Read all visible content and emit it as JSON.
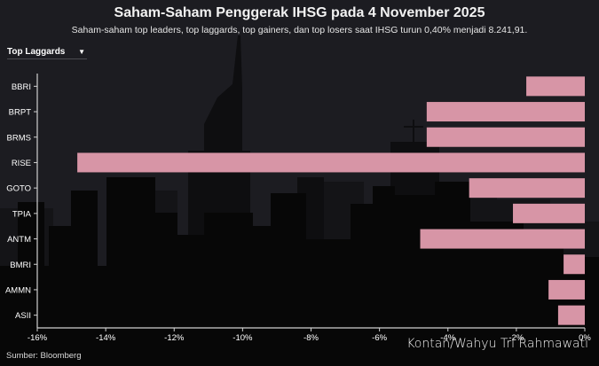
{
  "header": {
    "title": "Saham-Saham Penggerak IHSG pada 4 November 2025",
    "subtitle": "Saham-saham top leaders, top laggards, top gainers, dan top losers saat IHSG turun 0,40% menjadi 8.241,91."
  },
  "filter": {
    "selected": "Top Laggards",
    "icon": "caret-down-icon"
  },
  "footer": {
    "source": "Sumber: Bloomberg",
    "credit": "Kontan/Wahyu Tri Rahmawati"
  },
  "colors": {
    "bar": "#d795a6",
    "background": "#1c1c21",
    "axis": "#d0d0d0",
    "text": "#ffffff"
  },
  "chart_data": {
    "type": "bar",
    "orientation": "horizontal",
    "title": "Saham-Saham Penggerak IHSG pada 4 November 2025",
    "subtitle": "Saham-saham top leaders, top laggards, top gainers, dan top losers saat IHSG turun 0,40% menjadi 8.241,91.",
    "categories": [
      "BBRI",
      "BRPT",
      "BRMS",
      "RISE",
      "GOTO",
      "TPIA",
      "ANTM",
      "BMRI",
      "AMMN",
      "ASII"
    ],
    "values": [
      -1.71,
      -4.62,
      -4.62,
      -14.83,
      -3.38,
      -2.1,
      -4.81,
      -0.62,
      -1.06,
      -0.78
    ],
    "unit": "%",
    "xlabel": "",
    "ylabel": "",
    "xlim": [
      -16,
      0
    ],
    "xticks": [
      -16,
      -14,
      -12,
      -10,
      -8,
      -6,
      -4,
      -2,
      0
    ],
    "xtick_labels": [
      "-16%",
      "-14%",
      "-12%",
      "-10%",
      "-8%",
      "-6%",
      "-4%",
      "-2%",
      "0%"
    ],
    "grid": false,
    "legend": null,
    "series_color": "#d795a6"
  }
}
